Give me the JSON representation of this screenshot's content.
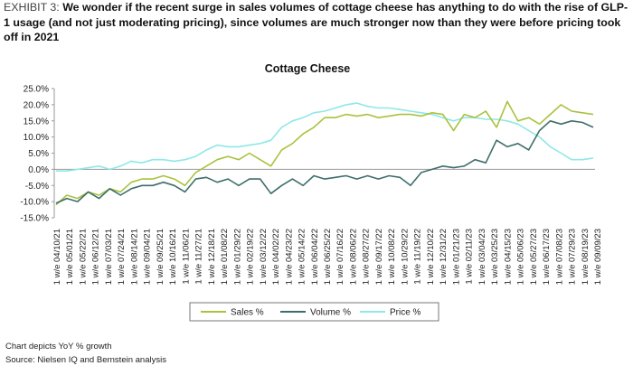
{
  "header": {
    "exhibit_label": "EXHIBIT 3:",
    "headline": "We wonder if the recent surge in sales volumes of cottage cheese has anything to do with the rise of GLP-1 usage (and not just moderating pricing), since volumes are much stronger now than they were before pricing took off in 2021"
  },
  "footer": {
    "note": "Chart depicts YoY % growth",
    "source": "Source: Nielsen IQ and Bernstein analysis"
  },
  "colors": {
    "sales": "#a9c23f",
    "volume": "#3e6e6a",
    "price": "#8fe8e8",
    "axis": "#999999"
  },
  "chart_data": {
    "type": "line",
    "title": "Cottage Cheese",
    "ylim": [
      -15,
      25
    ],
    "y_ticks": [
      "25.0%",
      "20.0%",
      "15.0%",
      "10.0%",
      "5.0%",
      "0.0%",
      "-5.0%",
      "-10.0%",
      "-15.0%"
    ],
    "x_tick_labels": [
      "1 w/e 04/10/21",
      "1 w/e 05/01/21",
      "1 w/e 05/22/21",
      "1 w/e 06/12/21",
      "1 w/e 07/03/21",
      "1 w/e 07/24/21",
      "1 w/e 08/14/21",
      "1 w/e 09/04/21",
      "1 w/e 09/25/21",
      "1 w/e 10/16/21",
      "1 w/e 11/06/21",
      "1 w/e 11/27/21",
      "1 w/e 12/18/21",
      "1 w/e 01/08/22",
      "1 w/e 01/29/22",
      "1 w/e 02/19/22",
      "1 w/e 03/12/22",
      "1 w/e 04/02/22",
      "1 w/e 04/23/22",
      "1 w/e 05/14/22",
      "1 w/e 06/04/22",
      "1 w/e 06/25/22",
      "1 w/e 07/16/22",
      "1 w/e 08/06/22",
      "1 w/e 08/27/22",
      "1 w/e 09/17/22",
      "1 w/e 10/08/22",
      "1 w/e 10/29/22",
      "1 w/e 11/19/22",
      "1 w/e 12/10/22",
      "1 w/e 12/31/22",
      "1 w/e 01/21/23",
      "1 w/e 02/11/23",
      "1 w/e 03/04/23",
      "1 w/e 03/25/23",
      "1 w/e 04/15/23",
      "1 w/e 05/06/23",
      "1 w/e 05/27/23",
      "1 w/e 06/17/23",
      "1 w/e 07/08/23",
      "1 w/e 07/29/23",
      "1 w/e 08/19/23",
      "1 w/e 09/09/23"
    ],
    "legend_position": "bottom",
    "series": [
      {
        "name": "Sales %",
        "values": [
          -11,
          -8,
          -9,
          -7,
          -8,
          -6,
          -7,
          -4,
          -3,
          -3,
          -2,
          -3,
          -5,
          -1,
          1,
          3,
          4,
          3,
          5,
          3,
          1,
          6,
          8,
          11,
          13,
          16,
          16,
          17,
          16.5,
          17,
          16,
          16.5,
          17,
          17,
          16.5,
          17.5,
          17,
          12,
          17,
          16,
          18,
          13,
          21,
          15,
          16,
          14,
          17,
          20,
          18,
          17.5,
          17
        ]
      },
      {
        "name": "Volume %",
        "values": [
          -10.5,
          -9,
          -10,
          -7,
          -9,
          -6,
          -8,
          -6,
          -5,
          -5,
          -4,
          -5,
          -7,
          -3,
          -2.5,
          -4,
          -3,
          -5,
          -3,
          -3,
          -7.5,
          -5,
          -3,
          -5,
          -2,
          -3,
          -2.5,
          -2,
          -3,
          -2,
          -3,
          -2,
          -2.5,
          -5,
          -1,
          0,
          1,
          0.5,
          1,
          3,
          2,
          9,
          7,
          8,
          6,
          12,
          15,
          14,
          15,
          14.5,
          13
        ]
      },
      {
        "name": "Price %",
        "values": [
          -0.5,
          -0.5,
          0,
          0.5,
          1,
          0,
          1,
          2.5,
          2,
          3,
          3,
          2.5,
          3,
          4,
          6,
          7.5,
          7,
          7,
          7.5,
          8,
          9,
          13,
          15,
          16,
          17.5,
          18,
          19,
          20,
          20.5,
          19.5,
          19,
          19,
          18.5,
          18,
          17.5,
          17,
          16,
          15,
          16,
          16,
          15.5,
          15.5,
          15,
          14,
          12,
          10,
          7,
          5,
          3,
          3,
          3.5
        ]
      }
    ]
  }
}
